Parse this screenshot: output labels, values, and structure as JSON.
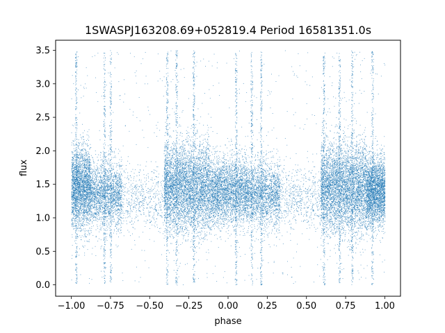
{
  "chart_data": {
    "type": "scatter",
    "title": "1SWASPJ163208.69+052819.4 Period 16581351.0s",
    "xlabel": "phase",
    "ylabel": "flux",
    "xlim": [
      -1.1,
      1.1
    ],
    "ylim": [
      -0.17,
      3.65
    ],
    "xticks": [
      -1.0,
      -0.75,
      -0.5,
      -0.25,
      0.0,
      0.25,
      0.5,
      0.75,
      1.0
    ],
    "xtick_labels": [
      "−1.00",
      "−0.75",
      "−0.50",
      "−0.25",
      "0.00",
      "0.25",
      "0.50",
      "0.75",
      "1.00"
    ],
    "yticks": [
      0.0,
      0.5,
      1.0,
      1.5,
      2.0,
      2.5,
      3.0,
      3.5
    ],
    "ytick_labels": [
      "0.0",
      "0.5",
      "1.0",
      "1.5",
      "2.0",
      "2.5",
      "3.0",
      "3.5"
    ],
    "grid": false,
    "marker_color": "#1f77b4",
    "series": [
      {
        "point_clusters": [
          {
            "x_range": [
              -1.0,
              -0.88
            ],
            "y_center": 1.45,
            "y_spread": 0.55,
            "weight": 5
          },
          {
            "x_range": [
              -0.88,
              -0.68
            ],
            "y_center": 1.35,
            "y_spread": 0.45,
            "weight": 4
          },
          {
            "x_range": [
              -0.68,
              -0.41
            ],
            "y_center": 1.3,
            "y_spread": 0.4,
            "weight": 1
          },
          {
            "x_range": [
              -0.41,
              -0.12
            ],
            "y_center": 1.45,
            "y_spread": 0.6,
            "weight": 9
          },
          {
            "x_range": [
              -0.12,
              0.12
            ],
            "y_center": 1.4,
            "y_spread": 0.45,
            "weight": 6
          },
          {
            "x_range": [
              0.12,
              0.33
            ],
            "y_center": 1.35,
            "y_spread": 0.45,
            "weight": 4
          },
          {
            "x_range": [
              0.33,
              0.59
            ],
            "y_center": 1.3,
            "y_spread": 0.4,
            "weight": 1
          },
          {
            "x_range": [
              0.59,
              0.88
            ],
            "y_center": 1.45,
            "y_spread": 0.6,
            "weight": 9
          },
          {
            "x_range": [
              0.88,
              1.0
            ],
            "y_center": 1.4,
            "y_spread": 0.45,
            "weight": 5
          }
        ],
        "vertical_streaks": [
          -0.97,
          -0.79,
          -0.75,
          -0.39,
          -0.33,
          -0.22,
          0.05,
          0.15,
          0.21,
          0.61,
          0.71,
          0.79,
          0.92
        ]
      }
    ]
  }
}
